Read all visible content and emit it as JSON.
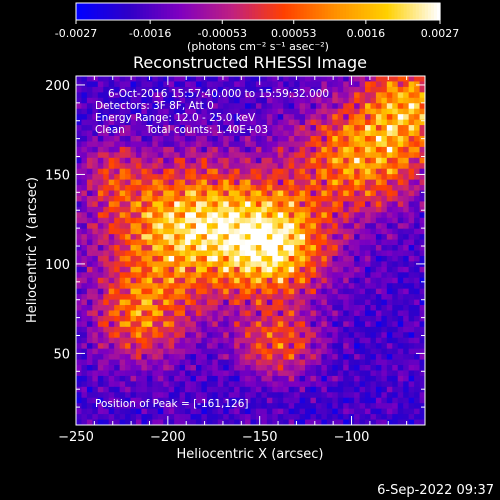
{
  "colorbar": {
    "ticks": [
      -0.0027,
      -0.0016,
      -0.00053,
      0.00053,
      0.0016,
      0.0027
    ],
    "tick_labels": [
      "-0.0027",
      "-0.0016",
      "-0.00053",
      "0.00053",
      "0.0016",
      "0.0027"
    ],
    "unit_label": "(photons cm⁻² s⁻¹ asec⁻²)",
    "colors": [
      "#0000ff",
      "#3000c8",
      "#8000c0",
      "#c02080",
      "#ff4000",
      "#ff9000",
      "#ffd000",
      "#ffffff"
    ]
  },
  "chart_data": {
    "type": "heatmap",
    "title": "Reconstructed RHESSI Image",
    "xlabel": "Heliocentric X (arcsec)",
    "ylabel": "Heliocentric Y (arcsec)",
    "xlim": [
      -250,
      -60
    ],
    "ylim": [
      10,
      205
    ],
    "x_ticks": [
      -250,
      -200,
      -150,
      -100
    ],
    "y_ticks": [
      50,
      100,
      150,
      200
    ],
    "x_tick_labels": [
      "−250",
      "−200",
      "−150",
      "−100"
    ],
    "y_tick_labels": [
      "50",
      "100",
      "150",
      "200"
    ],
    "peak": [
      -161,
      126
    ],
    "annotations": {
      "time_range": "6-Oct-2016 15:57:40.000 to 15:59:32.000",
      "detectors": "Detectors: 3F 8F, Att 0",
      "energy_range": "Energy Range: 12.0 - 25.0 keV",
      "clean": "Clean",
      "total_counts": "Total counts: 1.40E+03",
      "peak_position": "Position of Peak = [-161,126]"
    }
  },
  "footer": {
    "date": "6-Sep-2022 09:37"
  }
}
